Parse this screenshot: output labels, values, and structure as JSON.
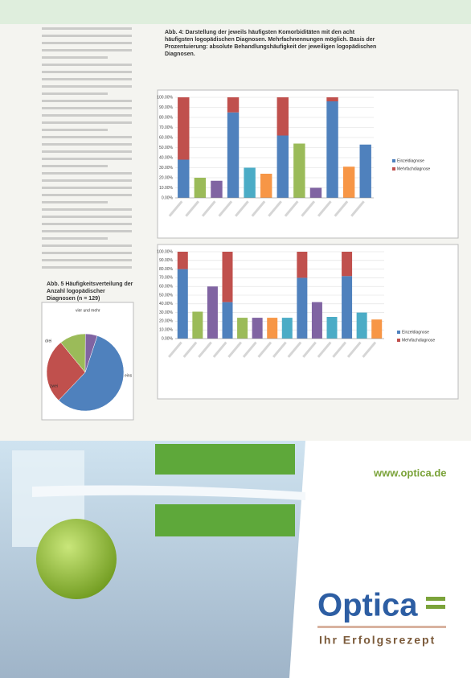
{
  "chart_data": [
    {
      "type": "bar",
      "title": "Abb. 4: Darstellung der jeweils häufigsten Komorbiditäten mit den acht häufigsten logopädischen Diagnosen. Mehrfachnennungen möglich. Basis der Prozentuierung: absolute Behandlungshäufigkeit der jeweiligen logopädischen Diagnosen.",
      "ylim": [
        0,
        100
      ],
      "yticks": [
        {
          "value": 0,
          "label": "0.00%"
        },
        {
          "value": 10,
          "label": "10.00%"
        },
        {
          "value": 20,
          "label": "20.00%"
        },
        {
          "value": 30,
          "label": "30.00%"
        },
        {
          "value": 40,
          "label": "40.00%"
        },
        {
          "value": 50,
          "label": "50.00%"
        },
        {
          "value": 60,
          "label": "60.00%"
        },
        {
          "value": 70,
          "label": "70.00%"
        },
        {
          "value": 80,
          "label": "80.00%"
        },
        {
          "value": 90,
          "label": "90.00%"
        },
        {
          "value": 100,
          "label": "100.00%"
        }
      ],
      "grid": true,
      "stacked": true,
      "legend": "right",
      "series": [
        {
          "name": "Einzeldiagnose",
          "color": "#4f81bd",
          "values": [
            38,
            null,
            null,
            85,
            null,
            null,
            62,
            null,
            null,
            96,
            null,
            null
          ]
        },
        {
          "name": "Mehrfachdiagnose",
          "color": "#c0504d",
          "values": [
            62,
            null,
            null,
            15,
            null,
            null,
            38,
            null,
            null,
            4,
            null,
            null
          ]
        },
        {
          "values": [
            null,
            20,
            17,
            null,
            30,
            24,
            null,
            54,
            10,
            null,
            31,
            53
          ],
          "colors": [
            null,
            "#9bbb59",
            "#8064a2",
            null,
            "#4bacc6",
            "#f79646",
            null,
            "#9bbb59",
            "#8064a2",
            null,
            "#f79646",
            "#4f81bd"
          ]
        }
      ]
    },
    {
      "type": "bar",
      "ylim": [
        0,
        100
      ],
      "yticks": [
        {
          "value": 0,
          "label": "0.00%"
        },
        {
          "value": 10,
          "label": "10.00%"
        },
        {
          "value": 20,
          "label": "20.00%"
        },
        {
          "value": 30,
          "label": "30.00%"
        },
        {
          "value": 40,
          "label": "40.00%"
        },
        {
          "value": 50,
          "label": "50.00%"
        },
        {
          "value": 60,
          "label": "60.00%"
        },
        {
          "value": 70,
          "label": "70.00%"
        },
        {
          "value": 80,
          "label": "80.00%"
        },
        {
          "value": 90,
          "label": "90.00%"
        },
        {
          "value": 100,
          "label": "100.00%"
        }
      ],
      "grid": true,
      "stacked": true,
      "legend": "right",
      "series": [
        {
          "name": "Einzeldiagnose",
          "color": "#4f81bd",
          "values": [
            80,
            null,
            null,
            42,
            null,
            null,
            null,
            null,
            70,
            null,
            null,
            72,
            null,
            null
          ]
        },
        {
          "name": "Mehrfachdiagnose",
          "color": "#c0504d",
          "values": [
            20,
            null,
            null,
            58,
            null,
            null,
            null,
            null,
            30,
            null,
            null,
            28,
            null,
            null
          ]
        },
        {
          "values": [
            null,
            31,
            60,
            null,
            24,
            24,
            24,
            24,
            null,
            42,
            25,
            null,
            30,
            22
          ],
          "colors": [
            null,
            "#9bbb59",
            "#8064a2",
            null,
            "#9bbb59",
            "#8064a2",
            "#f79646",
            "#4bacc6",
            null,
            "#8064a2",
            "#4bacc6",
            null,
            "#4bacc6",
            "#f79646"
          ]
        }
      ]
    },
    {
      "type": "pie",
      "title": "Abb. 5 Häufigkeitsverteilung der Anzahl logopädischer Diagnosen (n = 129)",
      "categories": [
        "eins",
        "zwei",
        "drei",
        "vier und mehr"
      ],
      "values": [
        57,
        27,
        11,
        5
      ],
      "colors": [
        "#4f81bd",
        "#c0504d",
        "#9bbb59",
        "#8064a2"
      ]
    }
  ],
  "ad": {
    "url": "www.optica.de",
    "brand": "Optica",
    "slogan": "Ihr Erfolgsrezept"
  }
}
